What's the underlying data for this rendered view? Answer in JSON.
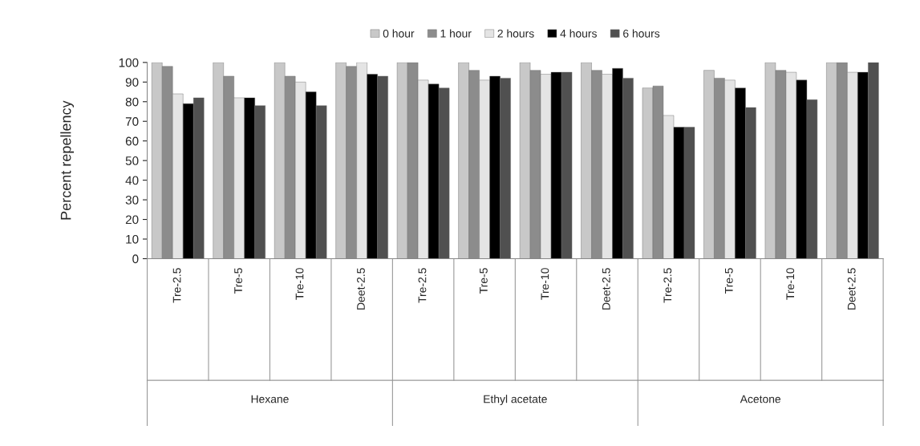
{
  "chart_data": {
    "type": "bar",
    "ylabel": "Percent repellency",
    "categories": [
      "Tre-2.5",
      "Tre-5",
      "Tre-10",
      "Deet-2.5",
      "Tre-2.5",
      "Tre-5",
      "Tre-10",
      "Deet-2.5",
      "Tre-2.5",
      "Tre-5",
      "Tre-10",
      "Deet-2.5"
    ],
    "series": [
      {
        "name": "0 hour",
        "color": "#c8c8c8",
        "values": [
          100,
          100,
          100,
          100,
          100,
          100,
          100,
          100,
          87,
          96,
          100,
          100
        ]
      },
      {
        "name": "1 hour",
        "color": "#8c8c8c",
        "values": [
          98,
          93,
          93,
          98,
          100,
          96,
          96,
          96,
          88,
          92,
          96,
          100
        ]
      },
      {
        "name": "2 hours",
        "color": "#e4e4e4",
        "values": [
          84,
          82,
          90,
          100,
          91,
          91,
          94,
          94,
          73,
          91,
          95,
          95
        ]
      },
      {
        "name": "4 hours",
        "color": "#000000",
        "values": [
          79,
          82,
          85,
          94,
          89,
          93,
          95,
          97,
          67,
          87,
          91,
          95
        ]
      },
      {
        "name": "6 hours",
        "color": "#505050",
        "values": [
          82,
          78,
          78,
          93,
          87,
          92,
          95,
          92,
          67,
          77,
          81,
          100
        ]
      }
    ],
    "annotations": [
      "Hexane",
      "Ethyl acetate",
      "Acetone"
    ],
    "ylim": [
      0,
      100
    ],
    "yticks": [
      0,
      10,
      20,
      30,
      40,
      50,
      60,
      70,
      80,
      90,
      100
    ],
    "grid": false,
    "legend": "top"
  }
}
